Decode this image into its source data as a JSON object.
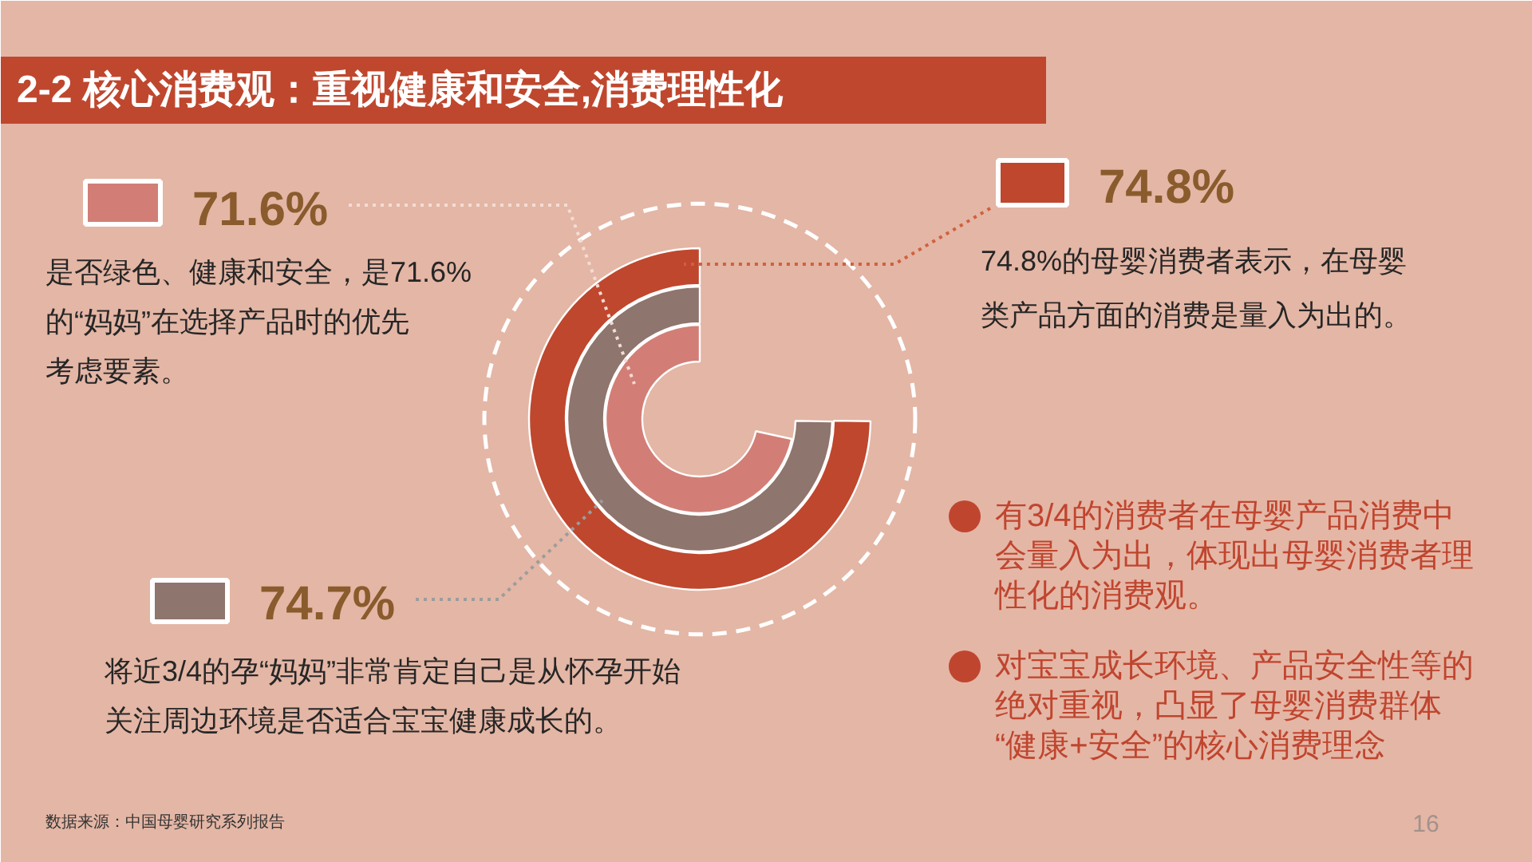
{
  "chart_data": {
    "type": "other",
    "title": "2-2 核心消费观：重视健康和安全,消费理性化",
    "categories": [
      "74.8%的母婴消费者表示，在母婴类产品方面的消费是量入为出的。",
      "将近3/4的孕“妈妈”非常肯定自己是从怀孕开始关注周边环境是否适合宝宝健康成长的。",
      "是否绿色、健康和安全，是71.6%的“妈妈”在选择产品时的优先考虑要素。"
    ],
    "values": [
      74.8,
      74.7,
      71.6
    ],
    "colors": [
      "#bf472e",
      "#8e756d",
      "#d27e76"
    ],
    "value_labels": [
      "74.8%",
      "74.7%",
      "71.6%"
    ],
    "annotations": [
      "有3/4的消费者在母婴产品消费中会量入为出，体现出母婴消费者理性化的消费观。",
      "对宝宝成长环境、产品安全性等的绝对重视，凸显了母婴消费群体“健康+安全”的核心消费理念",
      "数据来源：中国母婴研究系列报告",
      "16"
    ]
  }
}
